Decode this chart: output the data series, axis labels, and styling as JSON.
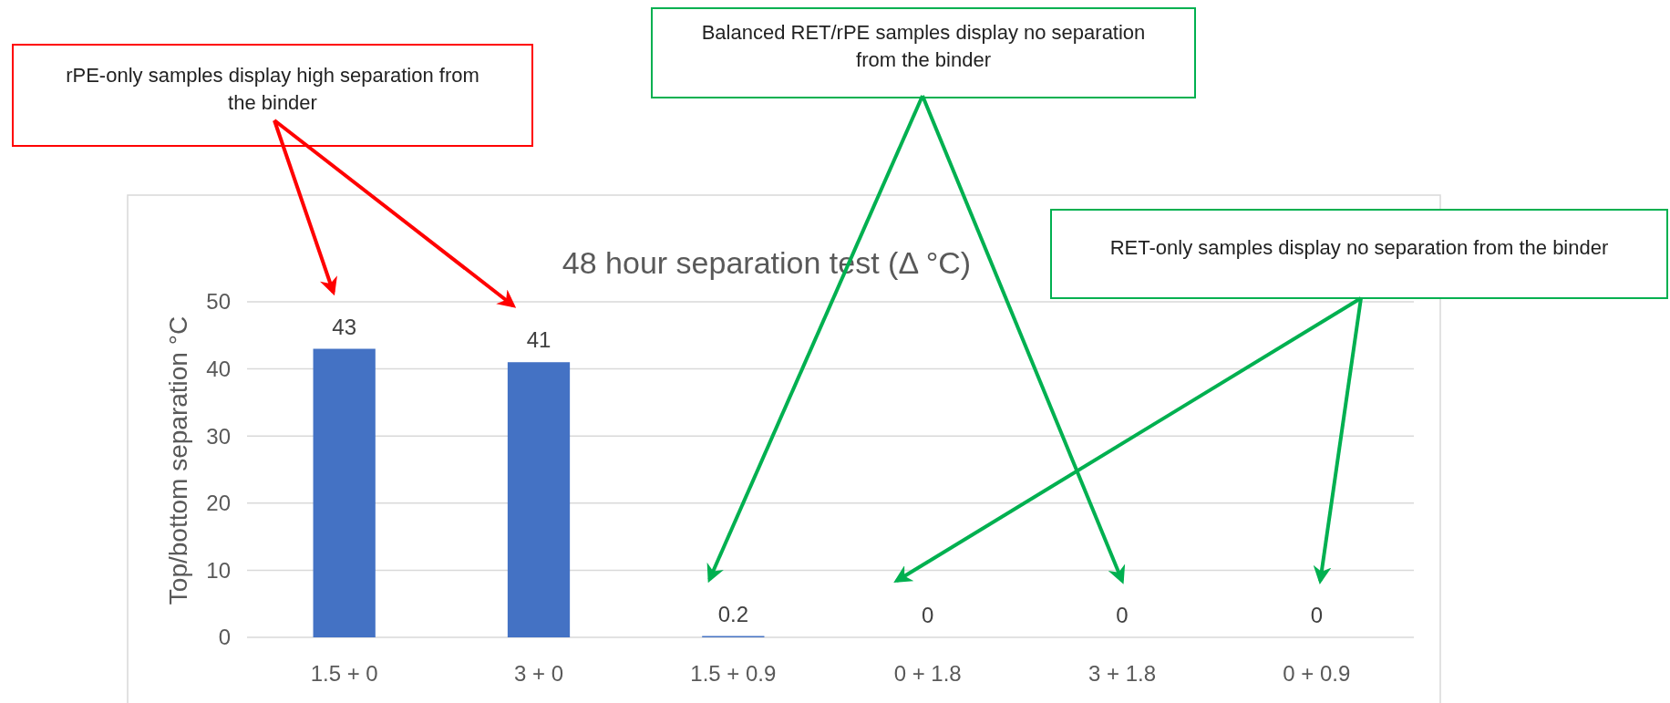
{
  "chart_data": {
    "type": "bar",
    "title": "48 hour separation test (Δ °C)",
    "ylabel": "Top/bottom separation °C",
    "categories": [
      "1.5 + 0",
      "3 + 0",
      "1.5 + 0.9",
      "0 + 1.8",
      "3 + 1.8",
      "0 + 0.9"
    ],
    "values": [
      43,
      41,
      0.2,
      0,
      0,
      0
    ],
    "color": "#4472c4",
    "ylim": [
      0,
      50
    ],
    "yticks": [
      0,
      10,
      20,
      30,
      40,
      50
    ],
    "grid": "y",
    "data_labels": true,
    "annotations": [
      "rPE-only samples display high separation from the binder",
      "Balanced RET/rPE samples display no separation from the binder",
      "RET-only samples display no separation from the binder"
    ]
  }
}
